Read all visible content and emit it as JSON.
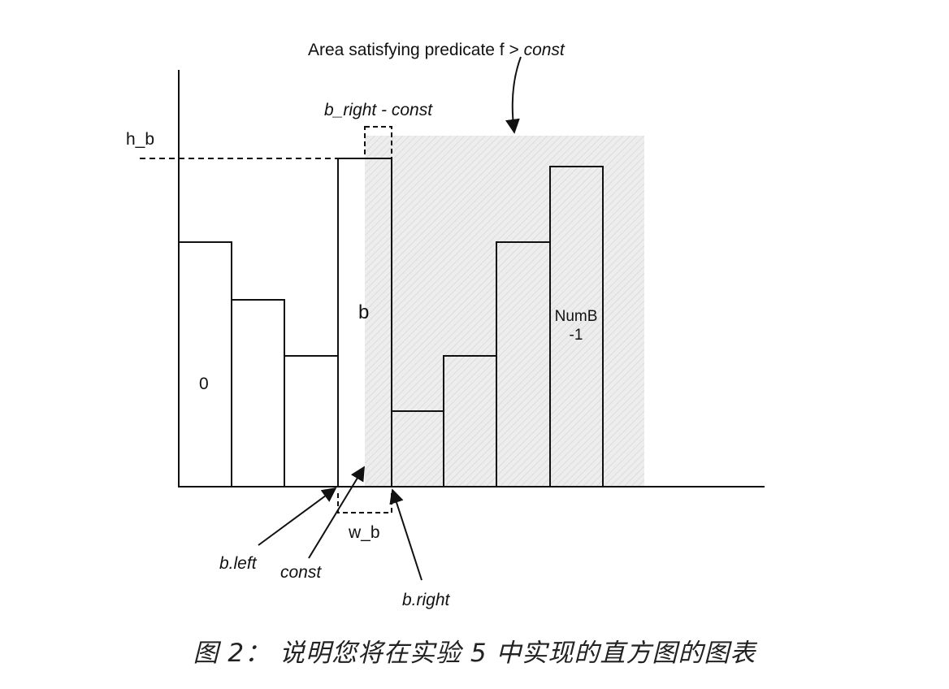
{
  "diagram": {
    "labels": {
      "area_title_prefix": "Area satisfying predicate f > ",
      "area_title_const": "const",
      "b_right_minus_const": "b_right - const",
      "h_b": "h_b",
      "b": "b",
      "bucket_zero": "0",
      "last_bucket_line1": "NumB",
      "last_bucket_line2": "-1",
      "w_b": "w_b",
      "b_left": "b.left",
      "const": "const",
      "b_right": "b.right"
    },
    "colors": {
      "stroke": "#111111",
      "shade": "#ededed",
      "hatch": "#dcdcdc"
    }
  },
  "caption": "图 2： 说明您将在实验 5 中实现的直方图的图表"
}
